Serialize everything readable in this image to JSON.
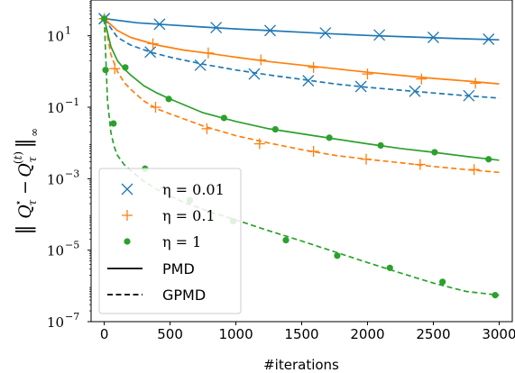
{
  "chart_data": {
    "type": "line",
    "title": "",
    "xlabel": "#iterations",
    "ylabel": "‖Q*τ − Q(t)τ‖∞",
    "xlim": [
      -100,
      3100
    ],
    "ylim": [
      1e-07,
      100
    ],
    "yscale": "log",
    "xticks": [
      0,
      500,
      1000,
      1500,
      2000,
      2500,
      3000
    ],
    "xtick_labels": [
      "0",
      "500",
      "1000",
      "1500",
      "2000",
      "2500",
      "3000"
    ],
    "yticks": [
      1e-07,
      1e-05,
      0.001,
      0.1,
      10
    ],
    "ytick_labels": [
      {
        "base": "10",
        "exp": "−7"
      },
      {
        "base": "10",
        "exp": "−5"
      },
      {
        "base": "10",
        "exp": "−3"
      },
      {
        "base": "10",
        "exp": "−1"
      },
      {
        "base": "10",
        "exp": "1"
      }
    ],
    "legend": {
      "placement": "lower-left",
      "entries": [
        {
          "label": "η = 0.01",
          "kind": "marker",
          "marker": "x",
          "color": "#1f77b4"
        },
        {
          "label": "η = 0.1",
          "kind": "marker",
          "marker": "+",
          "color": "#ff7f0e"
        },
        {
          "label": "η = 1",
          "kind": "marker",
          "marker": "dot",
          "color": "#2ca02c"
        },
        {
          "label": "PMD",
          "kind": "line",
          "dash": "solid",
          "color": "#000000"
        },
        {
          "label": "GPMD",
          "kind": "line",
          "dash": "dashed",
          "color": "#000000"
        }
      ]
    },
    "series": [
      {
        "method": "PMD",
        "eta": "0.01",
        "color": "#1f77b4",
        "marker": "x",
        "dash": "solid",
        "x": [
          0,
          250,
          500,
          750,
          1000,
          1250,
          1500,
          1750,
          2000,
          2250,
          2500,
          2750,
          3000
        ],
        "y": [
          30,
          23,
          20,
          17.5,
          15.5,
          14,
          12.5,
          11.2,
          10.2,
          9.5,
          8.8,
          8.2,
          7.7
        ],
        "markers_x": [
          0,
          420,
          850,
          1260,
          1680,
          2090,
          2500,
          2920
        ],
        "markers_y": [
          30,
          21,
          17,
          14,
          12,
          10.5,
          9.0,
          8.0
        ]
      },
      {
        "method": "GPMD",
        "eta": "0.01",
        "color": "#1f77b4",
        "marker": "x",
        "dash": "dashed",
        "x": [
          0,
          100,
          200,
          350,
          500,
          750,
          1000,
          1250,
          1500,
          1750,
          2000,
          2250,
          2500,
          2750,
          3000
        ],
        "y": [
          30,
          9,
          5.5,
          3.5,
          2.5,
          1.6,
          1.1,
          0.8,
          0.6,
          0.45,
          0.36,
          0.3,
          0.25,
          0.21,
          0.18
        ],
        "markers_x": [
          0,
          350,
          730,
          1140,
          1550,
          1950,
          2360,
          2770
        ],
        "markers_y": [
          30,
          3.5,
          1.5,
          0.85,
          0.55,
          0.38,
          0.28,
          0.21
        ]
      },
      {
        "method": "PMD",
        "eta": "0.1",
        "color": "#ff7f0e",
        "marker": "+",
        "dash": "solid",
        "x": [
          0,
          100,
          200,
          400,
          600,
          800,
          1000,
          1250,
          1500,
          1750,
          2000,
          2250,
          2500,
          2750,
          3000
        ],
        "y": [
          30,
          14,
          9,
          5.5,
          4,
          3.2,
          2.5,
          1.9,
          1.5,
          1.2,
          0.95,
          0.78,
          0.64,
          0.54,
          0.45
        ],
        "markers_x": [
          0,
          370,
          790,
          1190,
          1590,
          2000,
          2410,
          2820
        ],
        "markers_y": [
          30,
          6,
          3.3,
          2.1,
          1.3,
          0.85,
          0.62,
          0.47
        ]
      },
      {
        "method": "GPMD",
        "eta": "0.1",
        "color": "#ff7f0e",
        "marker": "+",
        "dash": "dashed",
        "x": [
          0,
          50,
          100,
          150,
          200,
          300,
          400,
          500,
          750,
          1000,
          1250,
          1500,
          1750,
          2000,
          2250,
          2500,
          2750,
          3000
        ],
        "y": [
          30,
          3,
          1,
          0.5,
          0.32,
          0.15,
          0.09,
          0.065,
          0.03,
          0.016,
          0.01,
          0.0065,
          0.0045,
          0.0035,
          0.0028,
          0.0022,
          0.0018,
          0.0015
        ],
        "markers_x": [
          0,
          80,
          390,
          780,
          1180,
          1590,
          1990,
          2400,
          2810
        ],
        "markers_y": [
          30,
          1.2,
          0.1,
          0.025,
          0.0095,
          0.0058,
          0.0035,
          0.0025,
          0.0018
        ]
      },
      {
        "method": "PMD",
        "eta": "1",
        "color": "#2ca02c",
        "marker": "dot",
        "dash": "solid",
        "x": [
          0,
          50,
          100,
          150,
          200,
          300,
          400,
          500,
          750,
          1000,
          1250,
          1500,
          1750,
          2000,
          2250,
          2500,
          2750,
          3000
        ],
        "y": [
          30,
          5,
          2,
          1.2,
          0.8,
          0.4,
          0.25,
          0.17,
          0.07,
          0.04,
          0.025,
          0.018,
          0.013,
          0.0095,
          0.007,
          0.0055,
          0.0042,
          0.0033
        ],
        "markers_x": [
          0,
          160,
          490,
          910,
          1300,
          1710,
          2100,
          2510,
          2920
        ],
        "markers_y": [
          30,
          1.3,
          0.17,
          0.05,
          0.024,
          0.014,
          0.0085,
          0.0055,
          0.0035
        ]
      },
      {
        "method": "GPMD",
        "eta": "1",
        "color": "#2ca02c",
        "marker": "dot",
        "dash": "dashed",
        "x": [
          0,
          25,
          50,
          75,
          100,
          150,
          200,
          300,
          400,
          600,
          800,
          1000,
          1250,
          1500,
          1750,
          2000,
          2250,
          2500,
          2750,
          3000
        ],
        "y": [
          30,
          0.15,
          0.02,
          0.008,
          0.0045,
          0.0025,
          0.0017,
          0.00085,
          0.0005,
          0.00022,
          0.00012,
          7e-05,
          3.5e-05,
          1.8e-05,
          9e-06,
          4.5e-06,
          2.3e-06,
          1.2e-06,
          7e-07,
          5.5e-07
        ],
        "markers_x": [
          0,
          10,
          70,
          310,
          650,
          980,
          1380,
          1770,
          2170,
          2570,
          2970
        ],
        "markers_y": [
          30,
          1.1,
          0.035,
          0.0019,
          0.00025,
          6.5e-05,
          1.9e-05,
          7e-06,
          3.2e-06,
          1.3e-06,
          5.5e-07
        ]
      }
    ]
  }
}
